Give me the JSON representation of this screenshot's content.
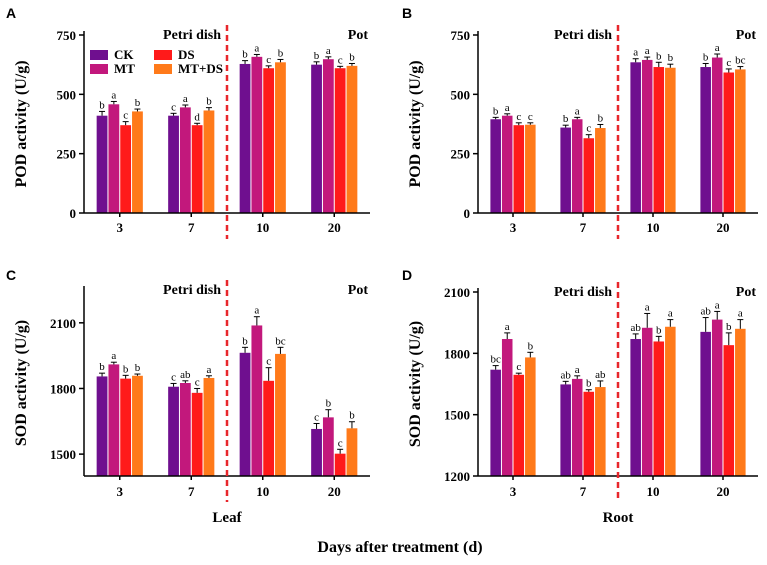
{
  "figure": {
    "xlabel": "Days after treatment (d)",
    "colors": {
      "CK": "#6f0f8f",
      "MT": "#c2187c",
      "DS": "#ff1a1a",
      "MT+DS": "#ff7a1a",
      "divider": "#e8262b"
    }
  },
  "chart_data": [
    {
      "type": "bar",
      "panel": "A",
      "ylabel": "POD activity (U/g)",
      "sublabel": "",
      "ylim": [
        0,
        750
      ],
      "yticks": [
        0,
        250,
        500,
        750
      ],
      "categories": [
        "3",
        "7",
        "10",
        "20"
      ],
      "left_label": "Petri dish",
      "right_label": "Pot",
      "legend": [
        "CK",
        "MT",
        "DS",
        "MT+DS"
      ],
      "series": [
        {
          "name": "CK",
          "values": [
            410,
            410,
            628,
            625
          ],
          "errors": [
            18,
            10,
            14,
            12
          ],
          "letters": [
            "b",
            "c",
            "b",
            "b"
          ]
        },
        {
          "name": "MT",
          "values": [
            458,
            445,
            658,
            648
          ],
          "errors": [
            12,
            10,
            10,
            10
          ],
          "letters": [
            "a",
            "a",
            "a",
            "a"
          ]
        },
        {
          "name": "DS",
          "values": [
            370,
            370,
            610,
            610
          ],
          "errors": [
            15,
            8,
            10,
            8
          ],
          "letters": [
            "c",
            "d",
            "c",
            "c"
          ]
        },
        {
          "name": "MT+DS",
          "values": [
            428,
            432,
            635,
            620
          ],
          "errors": [
            10,
            12,
            12,
            10
          ],
          "letters": [
            "b",
            "b",
            "b",
            "b"
          ]
        }
      ]
    },
    {
      "type": "bar",
      "panel": "B",
      "ylabel": "POD activity (U/g)",
      "sublabel": "",
      "ylim": [
        0,
        750
      ],
      "yticks": [
        0,
        250,
        500,
        750
      ],
      "categories": [
        "3",
        "7",
        "10",
        "20"
      ],
      "left_label": "Petri dish",
      "right_label": "Pot",
      "legend": [],
      "series": [
        {
          "name": "CK",
          "values": [
            395,
            360,
            635,
            615
          ],
          "errors": [
            8,
            10,
            15,
            15
          ],
          "letters": [
            "b",
            "b",
            "a",
            "b"
          ]
        },
        {
          "name": "MT",
          "values": [
            410,
            395,
            645,
            655
          ],
          "errors": [
            8,
            8,
            12,
            15
          ],
          "letters": [
            "a",
            "a",
            "a",
            "a"
          ]
        },
        {
          "name": "DS",
          "values": [
            370,
            315,
            615,
            592
          ],
          "errors": [
            10,
            15,
            20,
            15
          ],
          "letters": [
            "c",
            "c",
            "b",
            "c"
          ]
        },
        {
          "name": "MT+DS",
          "values": [
            372,
            358,
            612,
            605
          ],
          "errors": [
            8,
            15,
            15,
            12
          ],
          "letters": [
            "c",
            "b",
            "b",
            "bc"
          ]
        }
      ]
    },
    {
      "type": "bar",
      "panel": "C",
      "ylabel": "SOD activity (U/g)",
      "sublabel": "Leaf",
      "ylim": [
        1400,
        2250
      ],
      "yticks": [
        1500,
        1800,
        2100
      ],
      "categories": [
        "3",
        "7",
        "10",
        "20"
      ],
      "left_label": "Petri dish",
      "right_label": "Pot",
      "legend": [],
      "series": [
        {
          "name": "CK",
          "values": [
            1855,
            1808,
            1963,
            1615
          ],
          "errors": [
            15,
            15,
            25,
            25
          ],
          "letters": [
            "b",
            "c",
            "b",
            "c"
          ]
        },
        {
          "name": "MT",
          "values": [
            1910,
            1825,
            2088,
            1668
          ],
          "errors": [
            10,
            10,
            40,
            35
          ],
          "letters": [
            "a",
            "ab",
            "a",
            "b"
          ]
        },
        {
          "name": "DS",
          "values": [
            1845,
            1780,
            1835,
            1502
          ],
          "errors": [
            15,
            20,
            60,
            20
          ],
          "letters": [
            "b",
            "c",
            "c",
            "c"
          ]
        },
        {
          "name": "MT+DS",
          "values": [
            1858,
            1848,
            1958,
            1618
          ],
          "errors": [
            8,
            10,
            30,
            30
          ],
          "letters": [
            "b",
            "a",
            "bc",
            "b"
          ]
        }
      ]
    },
    {
      "type": "bar",
      "panel": "D",
      "ylabel": "SOD activity (U/g)",
      "sublabel": "Root",
      "ylim": [
        1200,
        2100
      ],
      "yticks": [
        1200,
        1500,
        1800,
        2100
      ],
      "categories": [
        "3",
        "7",
        "10",
        "20"
      ],
      "left_label": "Petri dish",
      "right_label": "Pot",
      "legend": [],
      "series": [
        {
          "name": "CK",
          "values": [
            1720,
            1648,
            1870,
            1905
          ],
          "errors": [
            20,
            15,
            25,
            70
          ],
          "letters": [
            "bc",
            "ab",
            "ab",
            "ab"
          ]
        },
        {
          "name": "MT",
          "values": [
            1870,
            1675,
            1925,
            1965
          ],
          "errors": [
            30,
            15,
            70,
            40
          ],
          "letters": [
            "a",
            "a",
            "a",
            "a"
          ]
        },
        {
          "name": "DS",
          "values": [
            1695,
            1612,
            1858,
            1840
          ],
          "errors": [
            8,
            10,
            25,
            60
          ],
          "letters": [
            "c",
            "b",
            "b",
            "b"
          ]
        },
        {
          "name": "MT+DS",
          "values": [
            1780,
            1635,
            1930,
            1920
          ],
          "errors": [
            25,
            30,
            35,
            45
          ],
          "letters": [
            "b",
            "ab",
            "a",
            "a"
          ]
        }
      ]
    }
  ]
}
